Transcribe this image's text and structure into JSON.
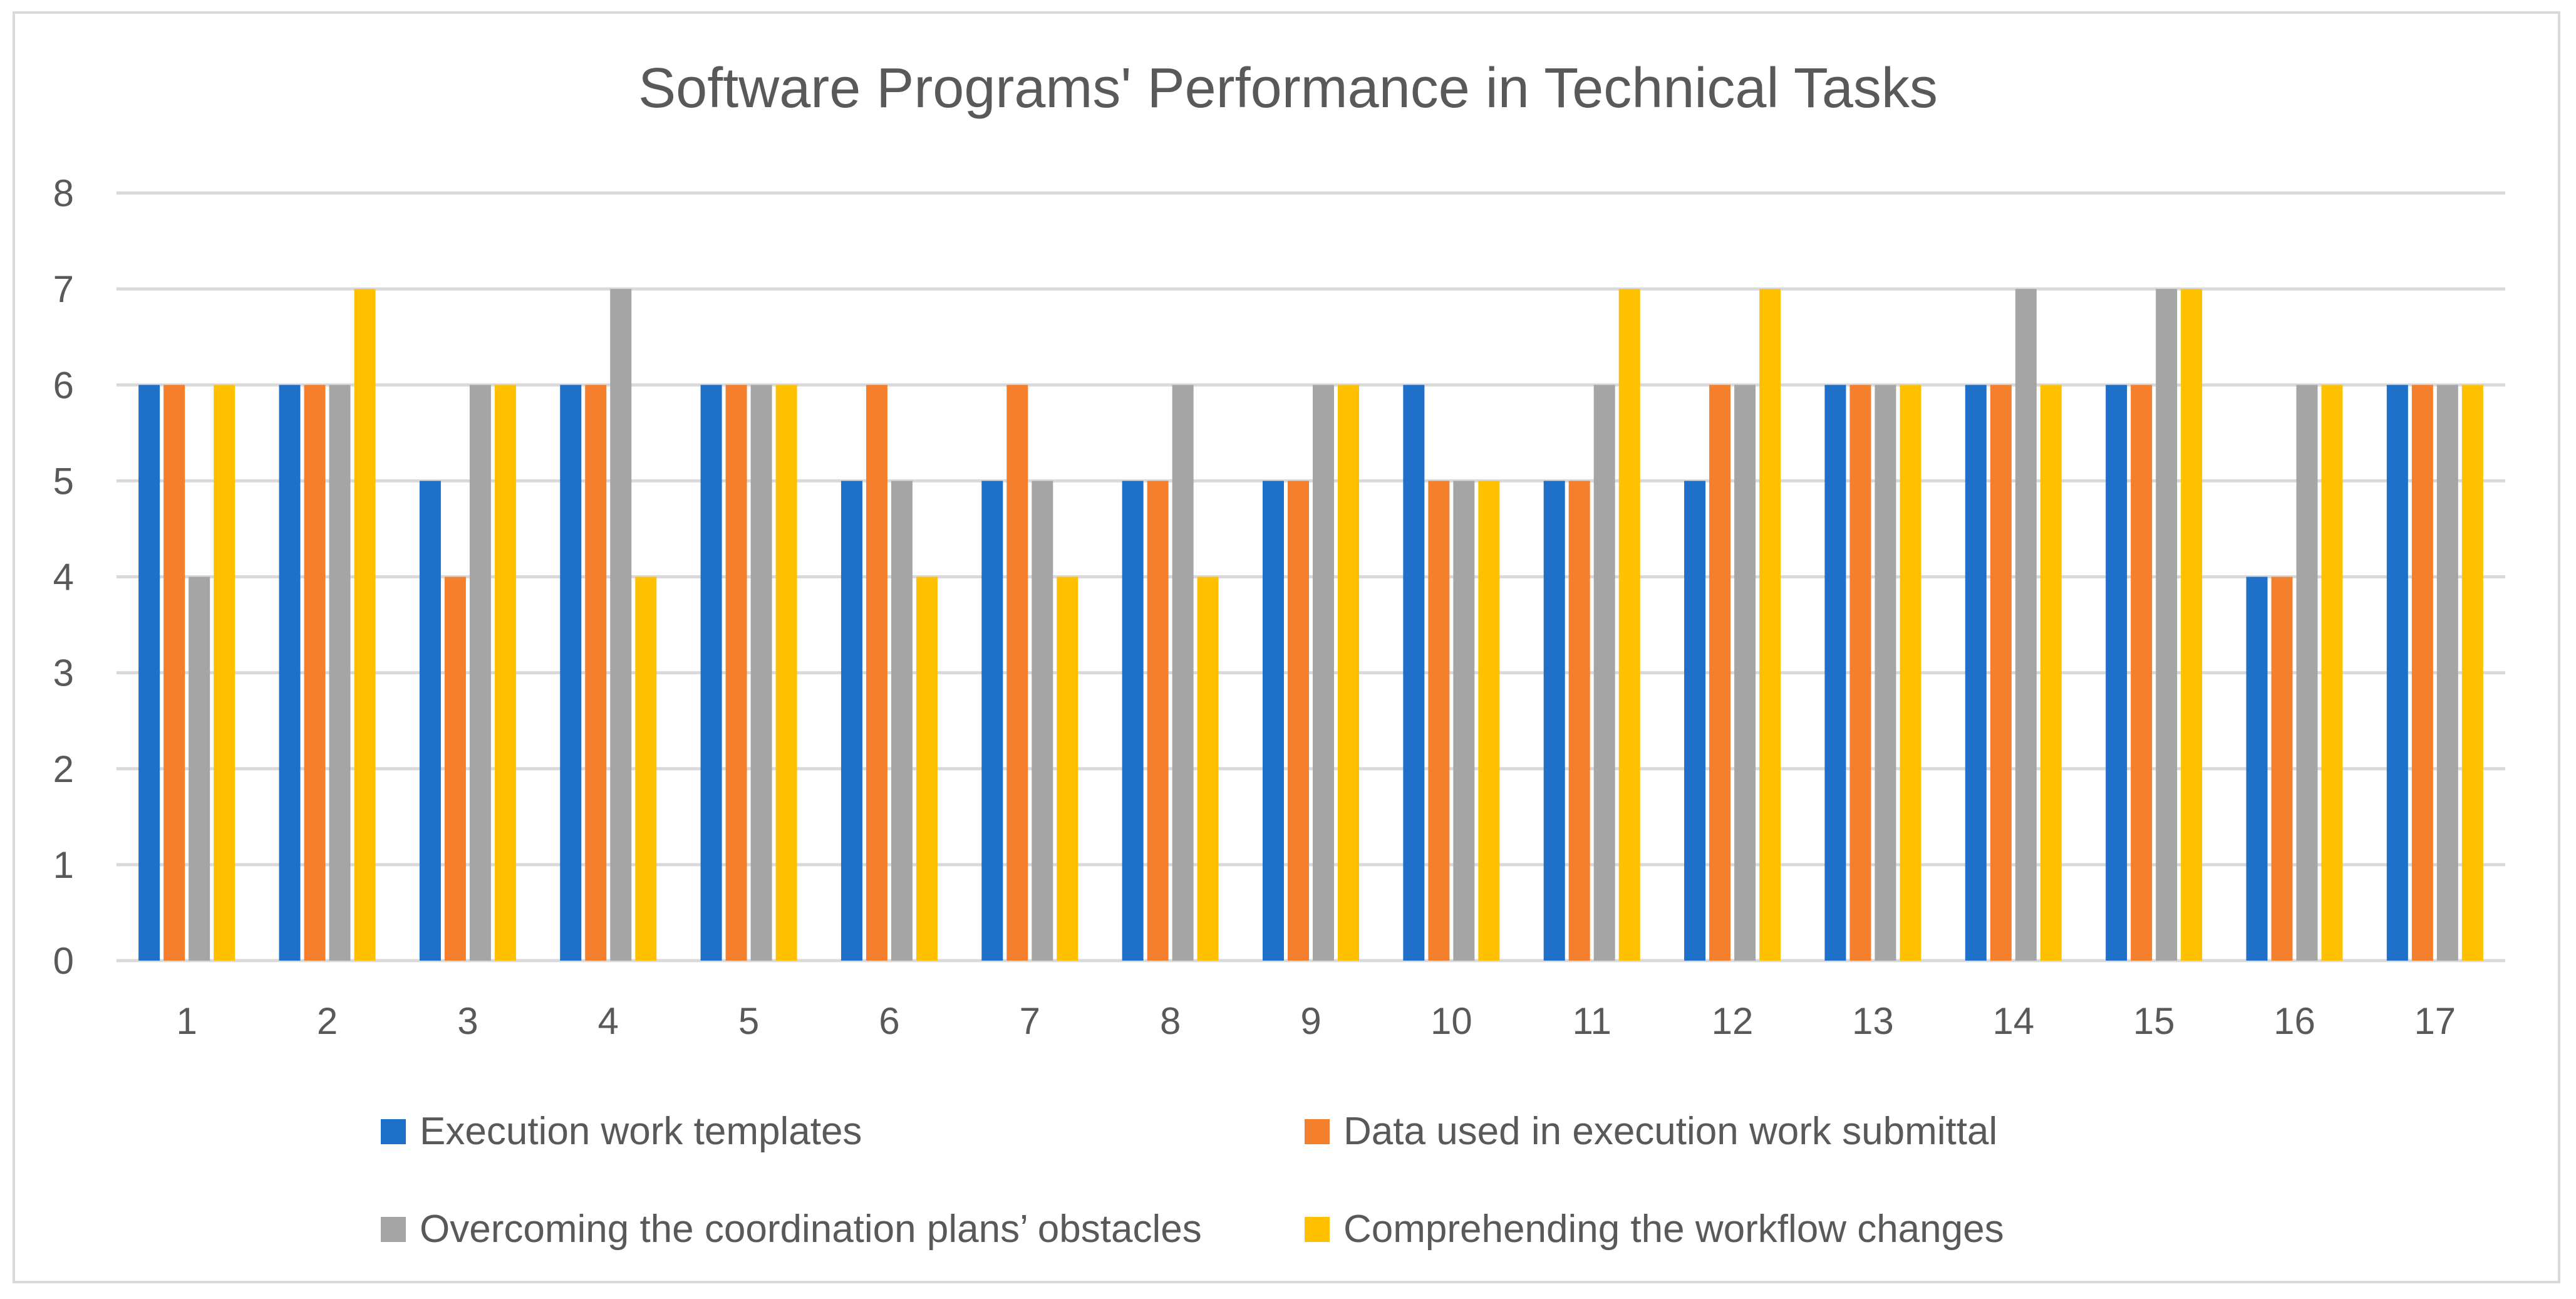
{
  "chart_data": {
    "type": "bar",
    "title": "Software Programs' Performance in Technical Tasks",
    "xlabel": "",
    "ylabel": "",
    "ylim": [
      0,
      8
    ],
    "yticks": [
      0,
      1,
      2,
      3,
      4,
      5,
      6,
      7,
      8
    ],
    "grid": true,
    "legend_position": "bottom",
    "categories": [
      "1",
      "2",
      "3",
      "4",
      "5",
      "6",
      "7",
      "8",
      "9",
      "10",
      "11",
      "12",
      "13",
      "14",
      "15",
      "16",
      "17"
    ],
    "series": [
      {
        "name": "Execution work templates",
        "color": "#1f70c8",
        "values": [
          6,
          6,
          5,
          6,
          6,
          5,
          5,
          5,
          5,
          6,
          5,
          5,
          6,
          6,
          6,
          4,
          6
        ]
      },
      {
        "name": "Data used in execution work submittal",
        "color": "#f47f2c",
        "values": [
          6,
          6,
          4,
          6,
          6,
          6,
          6,
          5,
          5,
          5,
          5,
          6,
          6,
          6,
          6,
          4,
          6
        ]
      },
      {
        "name": "Overcoming the coordination plans’ obstacles",
        "color": "#a5a5a5",
        "values": [
          4,
          6,
          6,
          7,
          6,
          5,
          5,
          6,
          6,
          5,
          6,
          6,
          6,
          7,
          7,
          6,
          6
        ]
      },
      {
        "name": "Comprehending the workflow changes",
        "color": "#ffc000",
        "values": [
          6,
          7,
          6,
          4,
          6,
          4,
          4,
          4,
          6,
          5,
          7,
          7,
          6,
          6,
          7,
          6,
          6
        ]
      }
    ]
  }
}
